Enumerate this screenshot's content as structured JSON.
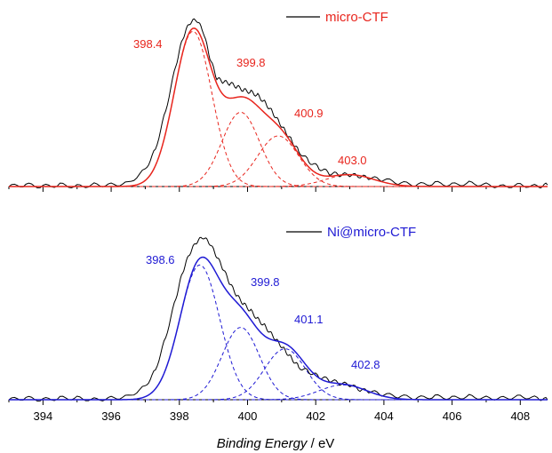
{
  "chart_data": [
    {
      "type": "line",
      "panel": "top",
      "title": "",
      "xlim": [
        393,
        408.8
      ],
      "x_reversed": false,
      "grid": false,
      "legend": {
        "placement": "top-right",
        "label": "micro-CTF",
        "line_color": "#000000",
        "text_color": "#e8251d"
      },
      "components": [
        {
          "center": 398.4,
          "label": "398.4",
          "amplitude": 0.92,
          "sigma": 0.55,
          "color": "#e8251d"
        },
        {
          "center": 399.8,
          "label": "399.8",
          "amplitude": 0.44,
          "sigma": 0.55,
          "color": "#e8251d"
        },
        {
          "center": 400.9,
          "label": "400.9",
          "amplitude": 0.3,
          "sigma": 0.6,
          "color": "#e8251d"
        },
        {
          "center": 403.0,
          "label": "403.0",
          "amplitude": 0.07,
          "sigma": 0.7,
          "color": "#e8251d"
        }
      ],
      "series": [
        {
          "name": "micro-CTF",
          "role": "measured",
          "color": "#000000",
          "x": [
            393.0,
            393.5,
            394.0,
            394.5,
            395.0,
            395.5,
            396.0,
            396.5,
            397.0,
            397.3,
            397.6,
            397.9,
            398.1,
            398.3,
            398.5,
            398.7,
            398.9,
            399.1,
            399.3,
            399.5,
            399.7,
            399.9,
            400.1,
            400.3,
            400.5,
            400.7,
            400.9,
            401.1,
            401.3,
            401.5,
            401.8,
            402.1,
            402.4,
            402.7,
            403.0,
            403.3,
            403.6,
            404.0,
            404.5,
            405.0,
            405.5,
            406.0,
            406.5,
            407.0,
            407.5,
            408.0,
            408.5,
            408.8
          ],
          "y": [
            0.0,
            0.01,
            0.0,
            0.01,
            0.0,
            0.01,
            0.01,
            0.02,
            0.1,
            0.22,
            0.45,
            0.72,
            0.88,
            0.97,
            0.99,
            0.92,
            0.76,
            0.64,
            0.62,
            0.61,
            0.59,
            0.57,
            0.56,
            0.54,
            0.5,
            0.45,
            0.39,
            0.33,
            0.27,
            0.21,
            0.15,
            0.11,
            0.08,
            0.07,
            0.07,
            0.06,
            0.05,
            0.04,
            0.02,
            0.01,
            0.02,
            0.01,
            0.02,
            0.01,
            0.0,
            0.01,
            0.0,
            0.01
          ]
        },
        {
          "name": "fit envelope",
          "role": "fit",
          "color": "#e8251d",
          "style": "solid"
        }
      ],
      "peak_labels_color": "#e8251d"
    },
    {
      "type": "line",
      "panel": "bottom",
      "title": "",
      "xlim": [
        393,
        408.8
      ],
      "x_reversed": false,
      "grid": false,
      "xlabel": "Binding Energy / eV",
      "xticks": [
        394,
        396,
        398,
        400,
        402,
        404,
        406,
        408
      ],
      "legend": {
        "placement": "top-right",
        "label": "Ni@micro-CTF",
        "line_color": "#000000",
        "text_color": "#1f1ad4"
      },
      "components": [
        {
          "center": 398.6,
          "label": "398.6",
          "amplitude": 0.82,
          "sigma": 0.58,
          "color": "#1f1ad4"
        },
        {
          "center": 399.8,
          "label": "399.8",
          "amplitude": 0.44,
          "sigma": 0.55,
          "color": "#1f1ad4"
        },
        {
          "center": 401.1,
          "label": "401.1",
          "amplitude": 0.31,
          "sigma": 0.6,
          "color": "#1f1ad4"
        },
        {
          "center": 402.8,
          "label": "402.8",
          "amplitude": 0.09,
          "sigma": 0.7,
          "color": "#1f1ad4"
        }
      ],
      "series": [
        {
          "name": "Ni@micro-CTF",
          "role": "measured",
          "color": "#000000",
          "x": [
            393.0,
            393.5,
            394.0,
            394.5,
            395.0,
            395.5,
            396.0,
            396.5,
            397.0,
            397.3,
            397.6,
            397.9,
            398.1,
            398.3,
            398.5,
            398.7,
            398.9,
            399.1,
            399.3,
            399.5,
            399.7,
            399.9,
            400.1,
            400.3,
            400.5,
            400.7,
            400.9,
            401.1,
            401.3,
            401.5,
            401.8,
            402.1,
            402.4,
            402.7,
            403.0,
            403.3,
            403.6,
            404.0,
            404.5,
            405.0,
            405.5,
            406.0,
            406.5,
            407.0,
            407.5,
            408.0,
            408.5,
            408.8
          ],
          "y": [
            0.0,
            0.01,
            0.0,
            0.01,
            0.01,
            0.0,
            0.01,
            0.02,
            0.08,
            0.18,
            0.38,
            0.62,
            0.78,
            0.89,
            0.96,
            0.99,
            0.95,
            0.87,
            0.79,
            0.7,
            0.63,
            0.58,
            0.54,
            0.49,
            0.45,
            0.4,
            0.35,
            0.3,
            0.25,
            0.2,
            0.17,
            0.14,
            0.12,
            0.1,
            0.09,
            0.06,
            0.05,
            0.03,
            0.02,
            0.01,
            0.02,
            0.01,
            0.02,
            0.01,
            0.01,
            0.02,
            0.01,
            0.0
          ]
        },
        {
          "name": "fit envelope",
          "role": "fit",
          "color": "#1f1ad4",
          "style": "solid"
        }
      ],
      "peak_labels_color": "#1f1ad4"
    }
  ],
  "axis": {
    "xlabel_italic": "Binding Energy",
    "xlabel_unit": " / eV",
    "tick_labels": [
      "394",
      "396",
      "398",
      "400",
      "402",
      "404",
      "406",
      "408"
    ]
  },
  "legend_top": {
    "label": "micro-CTF"
  },
  "legend_bottom": {
    "label": "Ni@micro-CTF"
  },
  "peak_labels_top": [
    "398.4",
    "399.8",
    "400.9",
    "403.0"
  ],
  "peak_labels_bottom": [
    "398.6",
    "399.8",
    "401.1",
    "402.8"
  ],
  "colors": {
    "top": "#e8251d",
    "bottom": "#1f1ad4",
    "measured": "#000000"
  }
}
